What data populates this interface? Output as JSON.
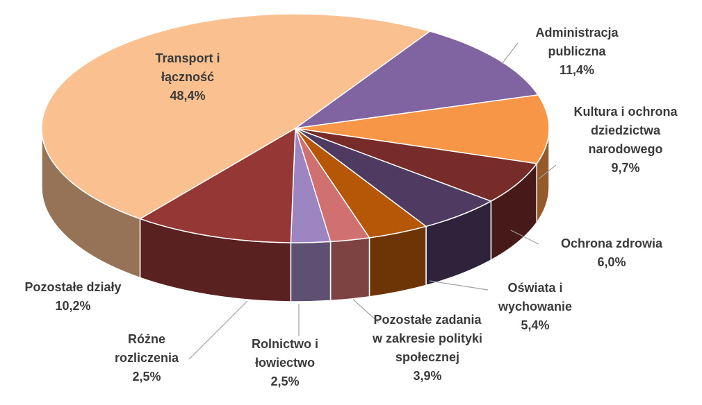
{
  "chart_data": {
    "type": "pie3d",
    "categories": [
      "Administracja publiczna",
      "Kultura i ochrona dziedzictwa narodowego",
      "Ochrona zdrowia",
      "Oświata i wychowanie",
      "Pozostałe zadania w zakresie polityki społecznej",
      "Rolnictwo i łowiectwo",
      "Różne rozliczenia",
      "Pozostałe działy",
      "Transport i łączność"
    ],
    "values": [
      11.4,
      9.7,
      6.0,
      5.4,
      3.9,
      2.5,
      2.5,
      10.2,
      48.4
    ],
    "value_labels": [
      "11,4%",
      "9,7%",
      "6,0%",
      "5,4%",
      "3,9%",
      "2,5%",
      "2,5%",
      "10,2%",
      "48,4%"
    ],
    "colors": [
      "#8064a2",
      "#f79646",
      "#772c2a",
      "#4f3b62",
      "#b65708",
      "#d07070",
      "#9c85c0",
      "#953735",
      "#fac090"
    ]
  }
}
